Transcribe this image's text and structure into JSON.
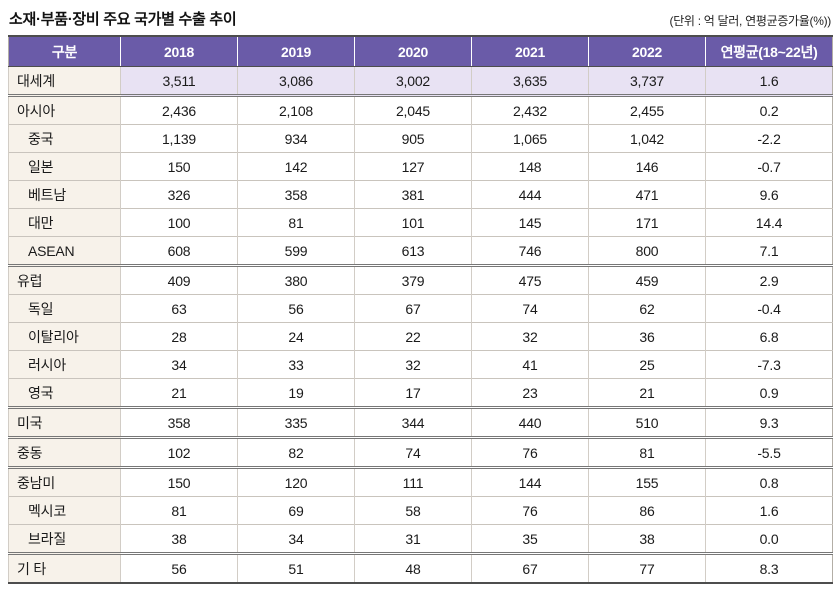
{
  "chart_data": {
    "type": "table",
    "title": "소재·부품·장비 주요 국가별 수출 추이",
    "unit_label": "(단위 : 억 달러, 연평균증가율(%))",
    "columns": [
      "구분",
      "2018",
      "2019",
      "2020",
      "2021",
      "2022",
      "연평균(18~22년)"
    ],
    "rows": [
      {
        "label": "대세계",
        "indent": false,
        "highlight": true,
        "group_start": false,
        "values": [
          "3,511",
          "3,086",
          "3,002",
          "3,635",
          "3,737",
          "1.6"
        ]
      },
      {
        "label": "아시아",
        "indent": false,
        "highlight": false,
        "group_start": true,
        "values": [
          "2,436",
          "2,108",
          "2,045",
          "2,432",
          "2,455",
          "0.2"
        ]
      },
      {
        "label": "중국",
        "indent": true,
        "highlight": false,
        "group_start": false,
        "values": [
          "1,139",
          "934",
          "905",
          "1,065",
          "1,042",
          "-2.2"
        ]
      },
      {
        "label": "일본",
        "indent": true,
        "highlight": false,
        "group_start": false,
        "values": [
          "150",
          "142",
          "127",
          "148",
          "146",
          "-0.7"
        ]
      },
      {
        "label": "베트남",
        "indent": true,
        "highlight": false,
        "group_start": false,
        "values": [
          "326",
          "358",
          "381",
          "444",
          "471",
          "9.6"
        ]
      },
      {
        "label": "대만",
        "indent": true,
        "highlight": false,
        "group_start": false,
        "values": [
          "100",
          "81",
          "101",
          "145",
          "171",
          "14.4"
        ]
      },
      {
        "label": "ASEAN",
        "indent": true,
        "highlight": false,
        "group_start": false,
        "values": [
          "608",
          "599",
          "613",
          "746",
          "800",
          "7.1"
        ]
      },
      {
        "label": "유럽",
        "indent": false,
        "highlight": false,
        "group_start": true,
        "values": [
          "409",
          "380",
          "379",
          "475",
          "459",
          "2.9"
        ]
      },
      {
        "label": "독일",
        "indent": true,
        "highlight": false,
        "group_start": false,
        "values": [
          "63",
          "56",
          "67",
          "74",
          "62",
          "-0.4"
        ]
      },
      {
        "label": "이탈리아",
        "indent": true,
        "highlight": false,
        "group_start": false,
        "values": [
          "28",
          "24",
          "22",
          "32",
          "36",
          "6.8"
        ]
      },
      {
        "label": "러시아",
        "indent": true,
        "highlight": false,
        "group_start": false,
        "values": [
          "34",
          "33",
          "32",
          "41",
          "25",
          "-7.3"
        ]
      },
      {
        "label": "영국",
        "indent": true,
        "highlight": false,
        "group_start": false,
        "values": [
          "21",
          "19",
          "17",
          "23",
          "21",
          "0.9"
        ]
      },
      {
        "label": "미국",
        "indent": false,
        "highlight": false,
        "group_start": true,
        "values": [
          "358",
          "335",
          "344",
          "440",
          "510",
          "9.3"
        ]
      },
      {
        "label": "중동",
        "indent": false,
        "highlight": false,
        "group_start": true,
        "values": [
          "102",
          "82",
          "74",
          "76",
          "81",
          "-5.5"
        ]
      },
      {
        "label": "중남미",
        "indent": false,
        "highlight": false,
        "group_start": true,
        "values": [
          "150",
          "120",
          "111",
          "144",
          "155",
          "0.8"
        ]
      },
      {
        "label": "멕시코",
        "indent": true,
        "highlight": false,
        "group_start": false,
        "values": [
          "81",
          "69",
          "58",
          "76",
          "86",
          "1.6"
        ]
      },
      {
        "label": "브라질",
        "indent": true,
        "highlight": false,
        "group_start": false,
        "values": [
          "38",
          "34",
          "31",
          "35",
          "38",
          "0.0"
        ]
      },
      {
        "label": "기 타",
        "indent": false,
        "highlight": false,
        "group_start": true,
        "values": [
          "56",
          "51",
          "48",
          "67",
          "77",
          "8.3"
        ]
      }
    ],
    "colors": {
      "header_bg": "#6a5ba8",
      "header_text": "#ffffff",
      "highlight_row_bg": "#e8e2f3",
      "label_column_bg": "#f7f2ea"
    }
  }
}
